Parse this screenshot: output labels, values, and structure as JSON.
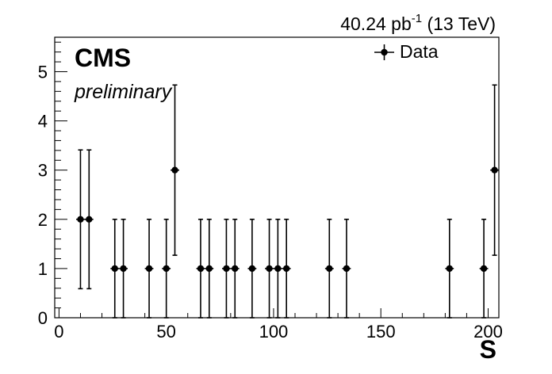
{
  "header": {
    "lumi_value": "40.24 pb",
    "lumi_exponent": "-1",
    "energy": " (13 TeV)"
  },
  "labels": {
    "experiment": "CMS",
    "status": "preliminary"
  },
  "legend": {
    "entry": "Data",
    "placement": "top-right"
  },
  "chart_data": {
    "type": "scatter",
    "xlabel": "S",
    "ylabel": "",
    "xlim": [
      -2,
      205
    ],
    "ylim": [
      0,
      5.7
    ],
    "x_ticks": [
      0,
      50,
      100,
      150,
      200
    ],
    "y_ticks": [
      0,
      1,
      2,
      3,
      4,
      5
    ],
    "grid": false,
    "series": [
      {
        "name": "Data",
        "color": "#000000",
        "points": [
          {
            "x": 10,
            "y": 2,
            "xerr": 2,
            "yerr_low": 1.41,
            "yerr_high": 1.41
          },
          {
            "x": 14,
            "y": 2,
            "xerr": 2,
            "yerr_low": 1.41,
            "yerr_high": 1.41
          },
          {
            "x": 26,
            "y": 1,
            "xerr": 2,
            "yerr_low": 1.0,
            "yerr_high": 1.0
          },
          {
            "x": 30,
            "y": 1,
            "xerr": 2,
            "yerr_low": 1.0,
            "yerr_high": 1.0
          },
          {
            "x": 42,
            "y": 1,
            "xerr": 2,
            "yerr_low": 1.0,
            "yerr_high": 1.0
          },
          {
            "x": 50,
            "y": 1,
            "xerr": 2,
            "yerr_low": 1.0,
            "yerr_high": 1.0
          },
          {
            "x": 54,
            "y": 3,
            "xerr": 2,
            "yerr_low": 1.73,
            "yerr_high": 1.73
          },
          {
            "x": 66,
            "y": 1,
            "xerr": 2,
            "yerr_low": 1.0,
            "yerr_high": 1.0
          },
          {
            "x": 70,
            "y": 1,
            "xerr": 2,
            "yerr_low": 1.0,
            "yerr_high": 1.0
          },
          {
            "x": 78,
            "y": 1,
            "xerr": 2,
            "yerr_low": 1.0,
            "yerr_high": 1.0
          },
          {
            "x": 82,
            "y": 1,
            "xerr": 2,
            "yerr_low": 1.0,
            "yerr_high": 1.0
          },
          {
            "x": 90,
            "y": 1,
            "xerr": 2,
            "yerr_low": 1.0,
            "yerr_high": 1.0
          },
          {
            "x": 98,
            "y": 1,
            "xerr": 2,
            "yerr_low": 1.0,
            "yerr_high": 1.0
          },
          {
            "x": 102,
            "y": 1,
            "xerr": 2,
            "yerr_low": 1.0,
            "yerr_high": 1.0
          },
          {
            "x": 106,
            "y": 1,
            "xerr": 2,
            "yerr_low": 1.0,
            "yerr_high": 1.0
          },
          {
            "x": 126,
            "y": 1,
            "xerr": 2,
            "yerr_low": 1.0,
            "yerr_high": 1.0
          },
          {
            "x": 134,
            "y": 1,
            "xerr": 2,
            "yerr_low": 1.0,
            "yerr_high": 1.0
          },
          {
            "x": 182,
            "y": 1,
            "xerr": 2,
            "yerr_low": 1.0,
            "yerr_high": 1.0
          },
          {
            "x": 198,
            "y": 1,
            "xerr": 2,
            "yerr_low": 1.0,
            "yerr_high": 1.0
          },
          {
            "x": 203,
            "y": 3,
            "xerr": 2,
            "yerr_low": 1.73,
            "yerr_high": 1.73
          }
        ]
      }
    ]
  }
}
